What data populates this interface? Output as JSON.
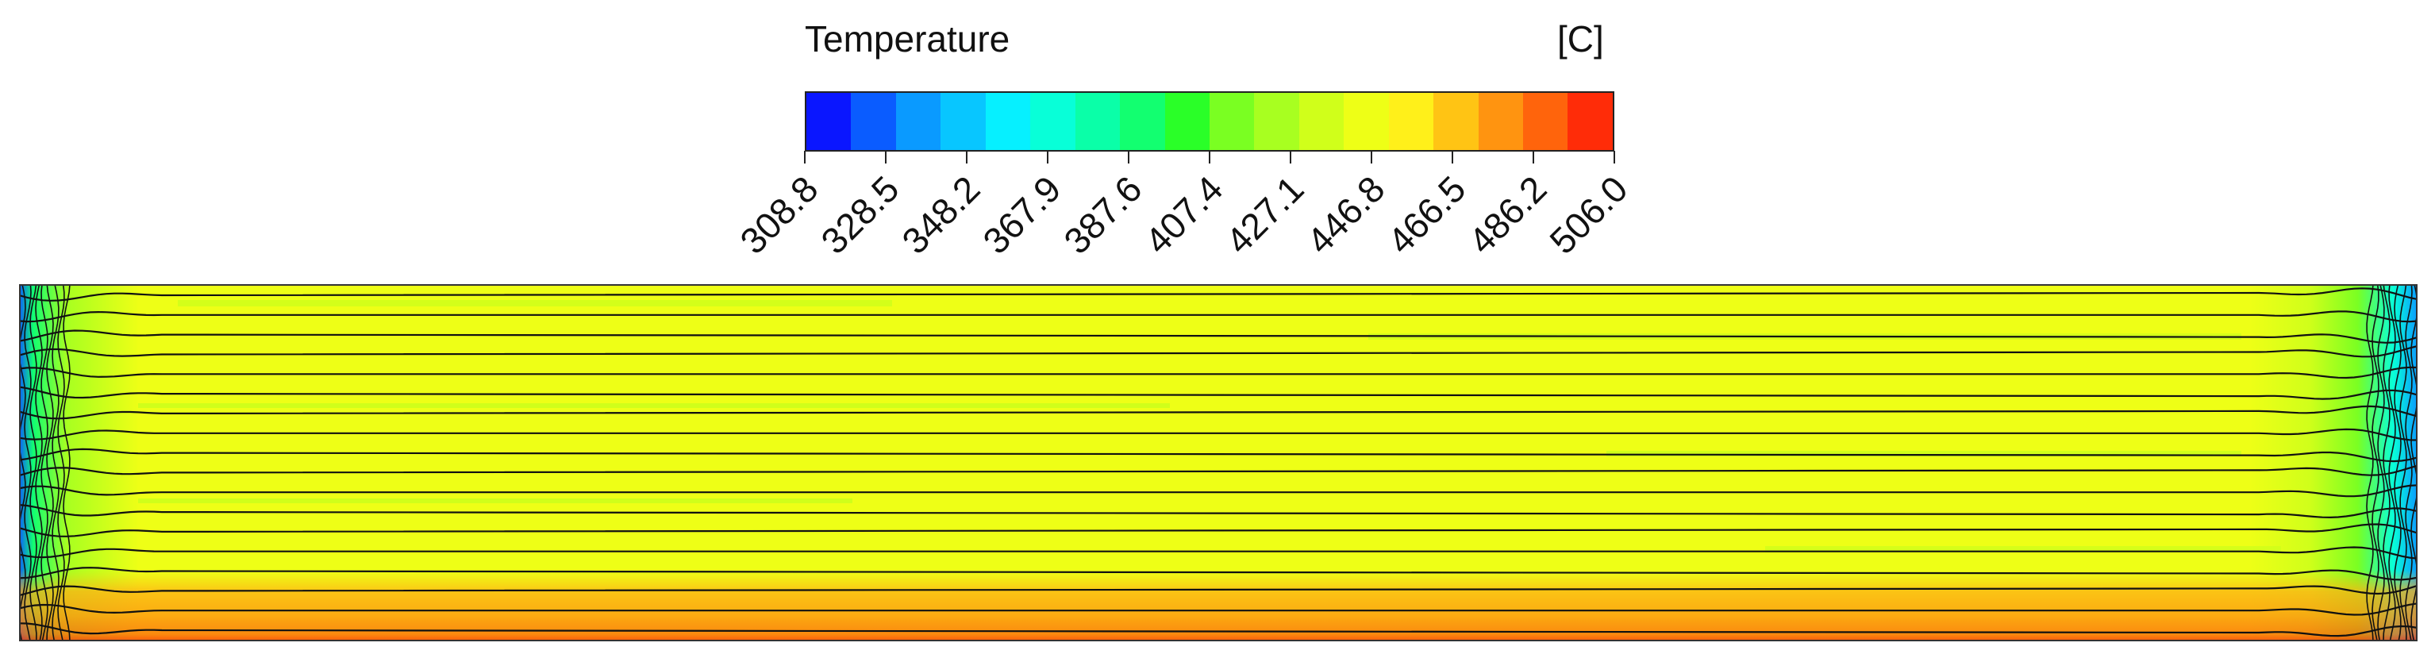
{
  "colorbar": {
    "title": "Temperature",
    "unit": "[C]",
    "tick_labels": [
      "308.8",
      "328.5",
      "348.2",
      "367.9",
      "387.6",
      "407.4",
      "427.1",
      "446.8",
      "466.5",
      "486.2",
      "506.0"
    ],
    "colors": [
      "#0a16ff",
      "#0a5cff",
      "#0a9aff",
      "#08c6ff",
      "#06f0ff",
      "#08ffd8",
      "#0affa8",
      "#12ff70",
      "#2aff28",
      "#7aff22",
      "#a8ff20",
      "#d0ff1a",
      "#eeff16",
      "#fff01a",
      "#ffc414",
      "#ff9410",
      "#ff640c",
      "#ff2c08"
    ]
  },
  "chart_data": {
    "type": "heatmap",
    "title": "",
    "variable": "Temperature",
    "unit": "C",
    "color_scale_range": [
      308.8,
      506.0
    ],
    "description_of_field": "Rectangular domain with horizontal contour bands; cool (green/blue) at left and right edges, ~466 C yellow in the core, warmer orange (~486-506 C) along the bottom band."
  }
}
